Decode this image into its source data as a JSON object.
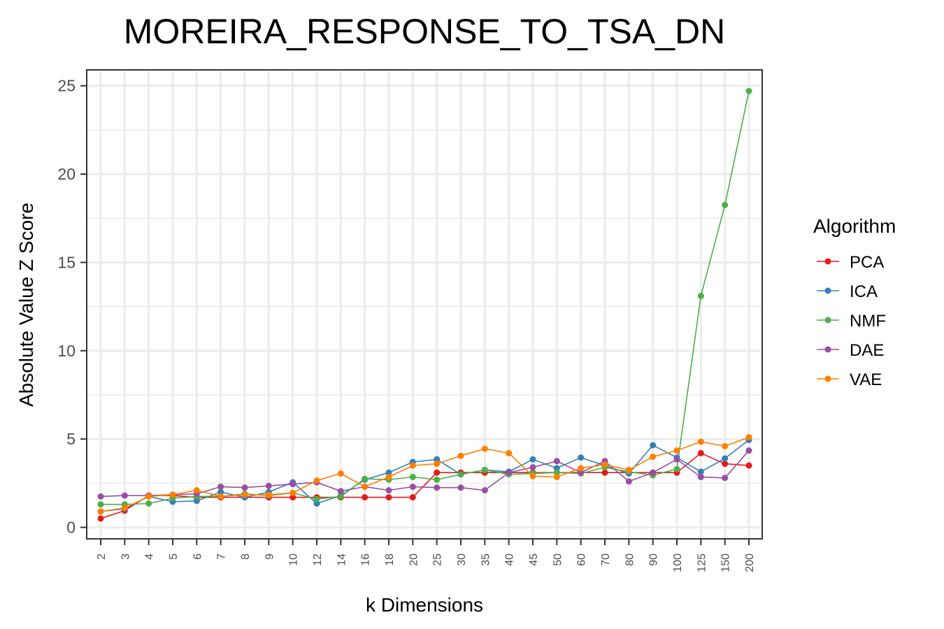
{
  "chart_data": {
    "type": "line",
    "title": "MOREIRA_RESPONSE_TO_TSA_DN",
    "xlabel": "k Dimensions",
    "ylabel": "Absolute Value Z Score",
    "categories": [
      "2",
      "3",
      "4",
      "5",
      "6",
      "7",
      "8",
      "9",
      "10",
      "12",
      "14",
      "16",
      "18",
      "20",
      "25",
      "30",
      "35",
      "40",
      "45",
      "50",
      "60",
      "70",
      "80",
      "90",
      "100",
      "125",
      "150",
      "200"
    ],
    "ylim": [
      -0.65,
      25.9
    ],
    "yticks": [
      0,
      5,
      10,
      15,
      20,
      25
    ],
    "grid": true,
    "legend": {
      "title": "Algorithm",
      "position": "right"
    },
    "series": [
      {
        "name": "PCA",
        "color": "#e41a1c",
        "values": [
          0.5,
          0.95,
          1.8,
          1.8,
          1.7,
          1.7,
          1.7,
          1.7,
          1.7,
          1.7,
          1.7,
          1.7,
          1.7,
          1.7,
          3.1,
          3.1,
          3.1,
          3.1,
          3.1,
          3.1,
          3.1,
          3.1,
          3.1,
          3.1,
          3.1,
          4.2,
          3.6,
          3.5
        ]
      },
      {
        "name": "ICA",
        "color": "#377eb8",
        "values": [
          0.9,
          1.05,
          1.75,
          1.45,
          1.5,
          2.0,
          1.7,
          2.0,
          2.55,
          1.35,
          1.8,
          2.7,
          3.1,
          3.7,
          3.85,
          3.0,
          3.25,
          3.15,
          3.85,
          3.35,
          3.95,
          3.5,
          3.05,
          4.65,
          3.95,
          3.15,
          3.9,
          4.95
        ]
      },
      {
        "name": "NMF",
        "color": "#4daf4a",
        "values": [
          1.3,
          1.3,
          1.35,
          1.65,
          1.75,
          1.75,
          1.9,
          1.8,
          1.95,
          1.6,
          1.75,
          2.75,
          2.7,
          2.85,
          2.7,
          3.0,
          3.25,
          3.0,
          3.05,
          3.1,
          3.05,
          3.4,
          3.15,
          2.95,
          3.3,
          13.1,
          18.25,
          24.7
        ]
      },
      {
        "name": "DAE",
        "color": "#984ea3",
        "values": [
          1.75,
          1.8,
          1.8,
          1.85,
          1.9,
          2.3,
          2.25,
          2.35,
          2.45,
          2.55,
          2.05,
          2.3,
          2.1,
          2.3,
          2.25,
          2.25,
          2.1,
          3.1,
          3.4,
          3.75,
          3.1,
          3.75,
          2.6,
          3.1,
          3.85,
          2.85,
          2.8,
          4.35
        ]
      },
      {
        "name": "VAE",
        "color": "#ff7f00",
        "values": [
          0.9,
          1.1,
          1.75,
          1.85,
          2.1,
          1.75,
          1.85,
          1.85,
          1.95,
          2.65,
          3.05,
          2.3,
          2.85,
          3.5,
          3.6,
          4.05,
          4.45,
          4.2,
          2.9,
          2.85,
          3.35,
          3.55,
          3.25,
          4.0,
          4.35,
          4.85,
          4.6,
          5.1
        ]
      }
    ]
  }
}
